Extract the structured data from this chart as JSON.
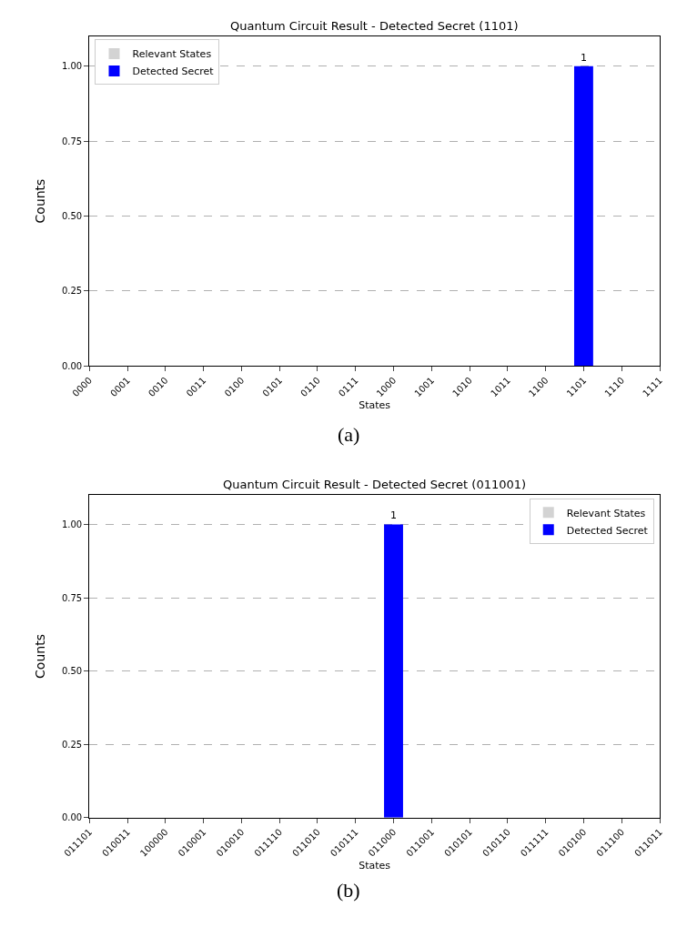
{
  "chart_data": [
    {
      "type": "bar",
      "title": "Quantum Circuit Result - Detected Secret (1101)",
      "xlabel": "States",
      "ylabel": "Counts",
      "categories": [
        "0000",
        "0001",
        "0010",
        "0011",
        "0100",
        "0101",
        "0110",
        "0111",
        "1000",
        "1001",
        "1010",
        "1011",
        "1100",
        "1101",
        "1110",
        "1111"
      ],
      "series": [
        {
          "name": "Relevant States",
          "color": "#d3d3d3",
          "values": [
            0,
            0,
            0,
            0,
            0,
            0,
            0,
            0,
            0,
            0,
            0,
            0,
            0,
            0,
            0,
            0
          ]
        },
        {
          "name": "Detected Secret",
          "color": "#0000ff",
          "values": [
            null,
            null,
            null,
            null,
            null,
            null,
            null,
            null,
            null,
            null,
            null,
            null,
            null,
            1,
            null,
            null
          ],
          "value_labels": [
            null,
            null,
            null,
            null,
            null,
            null,
            null,
            null,
            null,
            null,
            null,
            null,
            null,
            "1",
            null,
            null
          ]
        }
      ],
      "ylim": [
        0,
        1.1
      ],
      "yticks": [
        {
          "value": 0,
          "label": "0.00"
        },
        {
          "value": 0.25,
          "label": "0.25"
        },
        {
          "value": 0.5,
          "label": "0.50"
        },
        {
          "value": 0.75,
          "label": "0.75"
        },
        {
          "value": 1,
          "label": "1.00"
        }
      ],
      "grid": "y",
      "line_style": "dashed",
      "legend": "top left",
      "annotations": [
        "(a)"
      ]
    },
    {
      "type": "bar",
      "title": "Quantum Circuit Result - Detected Secret (011001)",
      "xlabel": "States",
      "ylabel": "Counts",
      "categories": [
        "011101",
        "010011",
        "100000",
        "010001",
        "010010",
        "011110",
        "011010",
        "010111",
        "011000",
        "011001",
        "010101",
        "010110",
        "011111",
        "010100",
        "011100",
        "011011"
      ],
      "series": [
        {
          "name": "Relevant States",
          "color": "#d3d3d3",
          "values": [
            0,
            0,
            0,
            0,
            0,
            0,
            0,
            0,
            0,
            0,
            0,
            0,
            0,
            0,
            0,
            0
          ]
        },
        {
          "name": "Detected Secret",
          "color": "#0000ff",
          "values": [
            null,
            null,
            null,
            null,
            null,
            null,
            null,
            null,
            1,
            null,
            null,
            null,
            null,
            null,
            null,
            null
          ],
          "value_labels": [
            null,
            null,
            null,
            null,
            null,
            null,
            null,
            null,
            "1",
            null,
            null,
            null,
            null,
            null,
            null,
            null
          ]
        }
      ],
      "ylim": [
        0,
        1.1
      ],
      "yticks": [
        {
          "value": 0,
          "label": "0.00"
        },
        {
          "value": 0.25,
          "label": "0.25"
        },
        {
          "value": 0.5,
          "label": "0.50"
        },
        {
          "value": 0.75,
          "label": "0.75"
        },
        {
          "value": 1,
          "label": "1.00"
        }
      ],
      "grid": "y",
      "line_style": "dashed",
      "legend": "top right",
      "annotations": [
        "(b)"
      ]
    }
  ]
}
